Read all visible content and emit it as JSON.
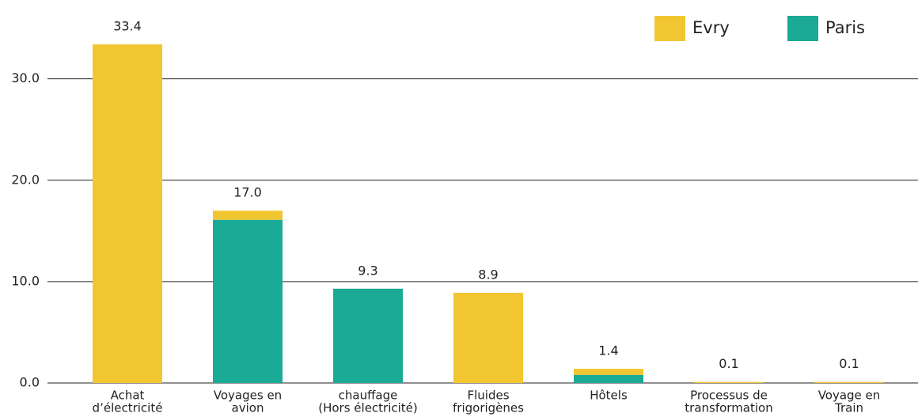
{
  "chart_data": {
    "type": "stacked_bar",
    "categories": [
      [
        "Achat",
        "d’électricité"
      ],
      [
        "Voyages en",
        "avion"
      ],
      [
        "chauffage",
        "(Hors électricité)"
      ],
      [
        "Fluides",
        "frigorigènes"
      ],
      [
        "Hôtels"
      ],
      [
        "Processus de",
        "transformation"
      ],
      [
        "Voyage en",
        "Train"
      ]
    ],
    "series": [
      {
        "name": "Paris",
        "color": "#1aaa96",
        "values": [
          0,
          16.1,
          9.3,
          0,
          0.8,
          0,
          0
        ]
      },
      {
        "name": "Evry",
        "color": "#f2c631",
        "values": [
          33.4,
          0.9,
          0,
          8.9,
          0.6,
          0.1,
          0.1
        ]
      }
    ],
    "value_labels": [
      "33.4",
      "17.0",
      "9.3",
      "8.9",
      "1.4",
      "0.1",
      "0.1"
    ],
    "legend_order": [
      "Evry",
      "Paris"
    ],
    "ylim": [
      0,
      37
    ],
    "yticks": [
      {
        "value": 0,
        "label": "0.0"
      },
      {
        "value": 10,
        "label": "10.0"
      },
      {
        "value": 20,
        "label": "20.0"
      },
      {
        "value": 30,
        "label": "30.0"
      }
    ],
    "grid": true
  }
}
